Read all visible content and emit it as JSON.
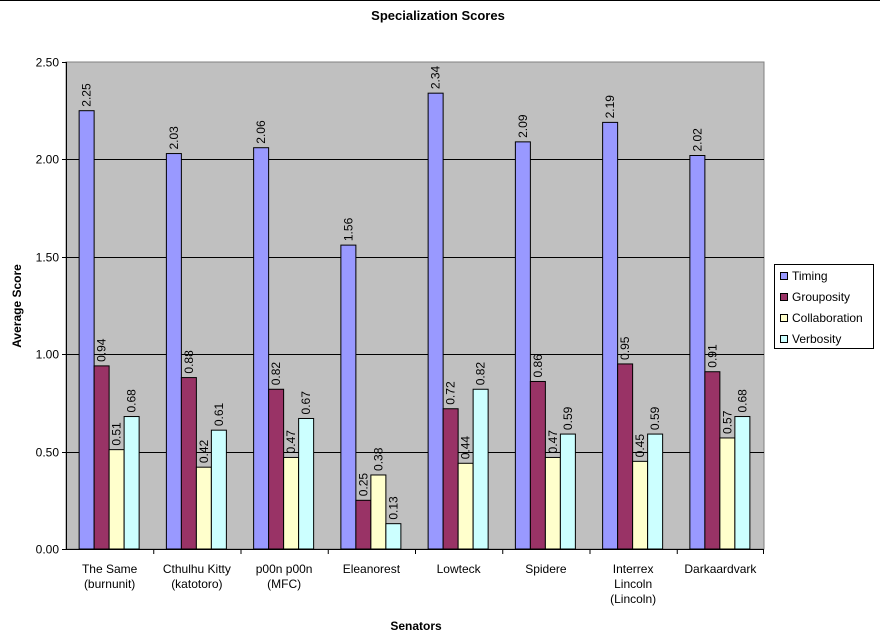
{
  "chart_data": {
    "type": "bar",
    "title": "Specialization Scores",
    "xlabel": "Senators",
    "ylabel": "Average Score",
    "ylim": [
      0,
      2.5
    ],
    "yticks": [
      "0.00",
      "0.50",
      "1.00",
      "1.50",
      "2.00",
      "2.50"
    ],
    "grid": true,
    "legend_position": "right",
    "categories": [
      [
        "The Same",
        "(burnunit)"
      ],
      [
        "Cthulhu Kitty",
        "(katotoro)"
      ],
      [
        "p00n p00n",
        "(MFC)"
      ],
      [
        "Eleanorest"
      ],
      [
        "Lowteck"
      ],
      [
        "Spidere"
      ],
      [
        "Interrex",
        "Lincoln",
        "(Lincoln)"
      ],
      [
        "Darkaardvark"
      ]
    ],
    "series": [
      {
        "name": "Timing",
        "color": "#9999ff",
        "values": [
          2.25,
          2.03,
          2.06,
          1.56,
          2.34,
          2.09,
          2.19,
          2.02
        ],
        "labels": [
          "2.25",
          "2.03",
          "2.06",
          "1.56",
          "2.34",
          "2.09",
          "2.19",
          "2.02"
        ]
      },
      {
        "name": "Grouposity",
        "color": "#993366",
        "values": [
          0.94,
          0.88,
          0.82,
          0.25,
          0.72,
          0.86,
          0.95,
          0.91
        ],
        "labels": [
          "0.94",
          "0.88",
          "0.82",
          "0.25",
          "0.72",
          "0.86",
          "0.95",
          "0.91"
        ]
      },
      {
        "name": "Collaboration",
        "color": "#ffffcc",
        "values": [
          0.51,
          0.42,
          0.47,
          0.38,
          0.44,
          0.47,
          0.45,
          0.57
        ],
        "labels": [
          "0.51",
          "0.42",
          "0.47",
          "0.38",
          "0.44",
          "0.47",
          "0.45",
          "0.57"
        ]
      },
      {
        "name": "Verbosity",
        "color": "#ccffff",
        "values": [
          0.68,
          0.61,
          0.67,
          0.13,
          0.82,
          0.59,
          0.59,
          0.68
        ],
        "labels": [
          "0.68",
          "0.61",
          "0.67",
          "0.13",
          "0.82",
          "0.59",
          "0.59",
          "0.68"
        ]
      }
    ],
    "plot_background": "#c0c0c0"
  }
}
